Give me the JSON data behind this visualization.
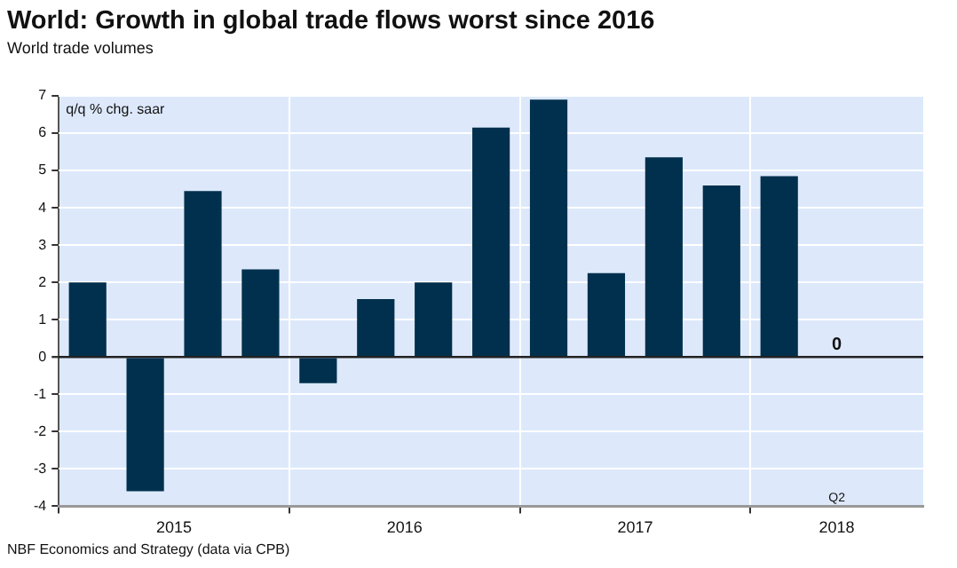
{
  "chart_data": {
    "type": "bar",
    "title": "World: Growth in global trade flows worst since 2016",
    "subtitle": "World trade volumes",
    "ylabel": "q/q % chg. saar",
    "x": [
      2015.125,
      2015.375,
      2015.625,
      2015.875,
      2016.125,
      2016.375,
      2016.625,
      2016.875,
      2017.125,
      2017.375,
      2017.625,
      2017.875,
      2018.125,
      2018.375
    ],
    "values": [
      2.0,
      -3.6,
      4.45,
      2.35,
      -0.7,
      1.55,
      2.0,
      6.15,
      6.9,
      2.25,
      5.35,
      4.6,
      4.85,
      0
    ],
    "value_labels": [
      null,
      null,
      null,
      null,
      null,
      null,
      null,
      null,
      null,
      null,
      null,
      null,
      null,
      "0"
    ],
    "color": "#00304d",
    "xlim": [
      2015,
      2018.75
    ],
    "xticks": [
      {
        "value": 2015,
        "label": null
      },
      {
        "value": 2015.5,
        "label": "2015"
      },
      {
        "value": 2016,
        "label": null
      },
      {
        "value": 2016.5,
        "label": "2016"
      },
      {
        "value": 2017,
        "label": null
      },
      {
        "value": 2017.5,
        "label": "2017"
      },
      {
        "value": 2018,
        "label": null
      },
      {
        "value": 2018.375,
        "label": "2018"
      }
    ],
    "ylim": [
      -4,
      7
    ],
    "yticks": [
      -4,
      -3,
      -2,
      -1,
      0,
      1,
      2,
      3,
      4,
      5,
      6,
      7
    ],
    "grid": true,
    "legend": false,
    "annotations": [
      "Q2",
      "NBF Economics and Strategy (data via CPB)"
    ]
  }
}
